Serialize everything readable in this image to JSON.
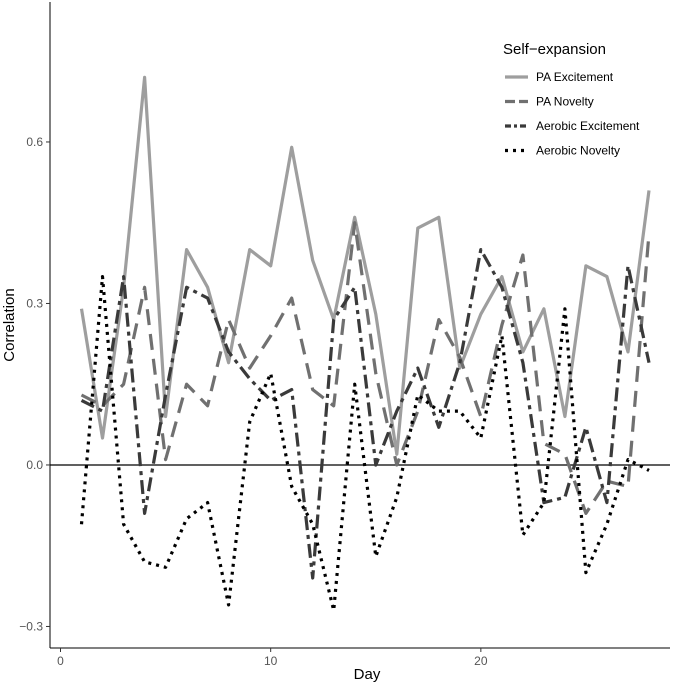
{
  "chart_data": {
    "type": "line",
    "title": "",
    "xlabel": "Day",
    "ylabel": "Correlation",
    "xlim": [
      -0.5,
      29
    ],
    "ylim": [
      -0.34,
      0.86
    ],
    "x_ticks": [
      0,
      10,
      20
    ],
    "x_tick_labels": [
      "0",
      "10",
      "20"
    ],
    "y_ticks": [
      -0.3,
      0.0,
      0.3,
      0.6
    ],
    "y_tick_labels": [
      "−0.3",
      "0.0",
      "0.3",
      "0.6"
    ],
    "reference_line": 0,
    "grid": false,
    "legend": {
      "title": "Self−expansion",
      "position": "top-right"
    },
    "x": [
      1,
      2,
      3,
      4,
      5,
      6,
      7,
      8,
      9,
      10,
      11,
      12,
      13,
      14,
      15,
      16,
      17,
      18,
      19,
      20,
      21,
      22,
      23,
      24,
      25,
      26,
      27,
      28
    ],
    "series": [
      {
        "name": "PA Excitement",
        "color": "#9e9e9e",
        "style": "solid",
        "values": [
          0.29,
          0.05,
          0.33,
          0.72,
          0.09,
          0.4,
          0.33,
          0.19,
          0.4,
          0.37,
          0.59,
          0.38,
          0.27,
          0.46,
          0.28,
          0.02,
          0.44,
          0.46,
          0.18,
          0.28,
          0.35,
          0.21,
          0.29,
          0.09,
          0.37,
          0.35,
          0.21,
          0.51
        ]
      },
      {
        "name": "PA Novelty",
        "color": "#707070",
        "style": "longdash",
        "values": [
          0.13,
          0.11,
          0.15,
          0.33,
          0.01,
          0.15,
          0.11,
          0.27,
          0.18,
          0.24,
          0.31,
          0.14,
          0.11,
          0.45,
          0.17,
          0.0,
          0.1,
          0.27,
          0.2,
          0.09,
          0.26,
          0.39,
          0.04,
          0.02,
          -0.09,
          -0.03,
          -0.04,
          0.43
        ]
      },
      {
        "name": "Aerobic Excitement",
        "color": "#3a3a3a",
        "style": "dashdot",
        "values": [
          0.12,
          0.1,
          0.35,
          -0.09,
          0.13,
          0.33,
          0.31,
          0.21,
          0.16,
          0.12,
          0.14,
          -0.21,
          0.27,
          0.33,
          0.0,
          0.1,
          0.18,
          0.07,
          0.19,
          0.4,
          0.33,
          0.19,
          -0.07,
          -0.06,
          0.07,
          -0.07,
          0.37,
          0.19
        ]
      },
      {
        "name": "Aerobic Novelty",
        "color": "#000000",
        "style": "dotted",
        "values": [
          -0.11,
          0.35,
          -0.11,
          -0.18,
          -0.19,
          -0.1,
          -0.07,
          -0.26,
          0.08,
          0.17,
          -0.04,
          -0.11,
          -0.27,
          0.15,
          -0.17,
          -0.06,
          0.13,
          0.1,
          0.1,
          0.05,
          0.24,
          -0.13,
          -0.07,
          0.29,
          -0.2,
          -0.11,
          0.01,
          -0.01
        ]
      }
    ]
  }
}
